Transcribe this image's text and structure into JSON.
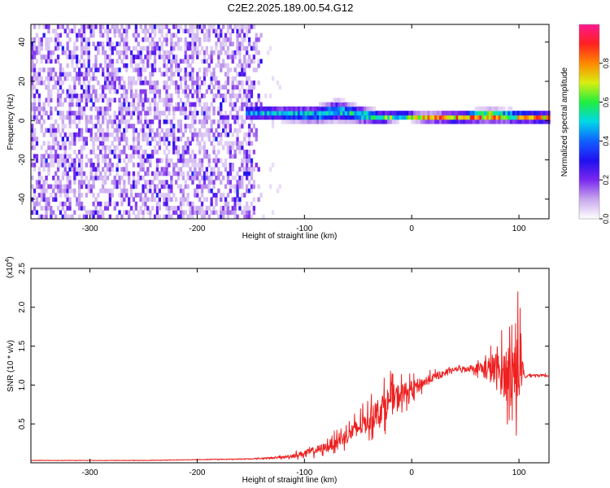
{
  "figure_title": "C2E2.2025.189.00.54.G12",
  "chart_data": [
    {
      "type": "heatmap",
      "title": "",
      "xlabel": "Height of straight line (km)",
      "ylabel": "Frequency (Hz)",
      "xlim": [
        -355,
        128
      ],
      "ylim": [
        -50,
        49
      ],
      "xticks": [
        -300,
        -200,
        -100,
        0,
        100
      ],
      "yticks": [
        -40,
        -20,
        0,
        20,
        40
      ],
      "colorbar": {
        "label": "Normalized spectral amplitude",
        "range": [
          0,
          1
        ],
        "ticks": [
          "0.0",
          "0.2",
          "0.4",
          "0.6",
          "0.8"
        ],
        "colormap": [
          "#ffffff",
          "#c8a8ee",
          "#7a28ee",
          "#2010f0",
          "#1060ff",
          "#00d8e8",
          "#20ee40",
          "#d8ee10",
          "#ff8800",
          "#ff2020",
          "#ff1890"
        ]
      },
      "noise_region_x": [
        -355,
        -140
      ],
      "signal_band": [
        {
          "x": -155,
          "center_hz": 3.0,
          "half_width_hz": 3.5,
          "peak_amp": 0.45
        },
        {
          "x": -120,
          "center_hz": 2.5,
          "half_width_hz": 3.5,
          "peak_amp": 0.5
        },
        {
          "x": -90,
          "center_hz": 2.0,
          "half_width_hz": 4.0,
          "peak_amp": 0.5
        },
        {
          "x": -70,
          "center_hz": 4.0,
          "half_width_hz": 5.0,
          "peak_amp": 0.5
        },
        {
          "x": -50,
          "center_hz": 2.0,
          "half_width_hz": 4.0,
          "peak_amp": 0.55
        },
        {
          "x": -30,
          "center_hz": 0.5,
          "half_width_hz": 3.0,
          "peak_amp": 0.6
        },
        {
          "x": -10,
          "center_hz": 1.5,
          "half_width_hz": 2.0,
          "peak_amp": 0.7
        },
        {
          "x": 10,
          "center_hz": 0.5,
          "half_width_hz": 2.0,
          "peak_amp": 0.85
        },
        {
          "x": 40,
          "center_hz": 0.5,
          "half_width_hz": 2.5,
          "peak_amp": 0.8
        },
        {
          "x": 70,
          "center_hz": 1.5,
          "half_width_hz": 3.0,
          "peak_amp": 0.9
        },
        {
          "x": 95,
          "center_hz": 1.0,
          "half_width_hz": 3.0,
          "peak_amp": 0.7
        },
        {
          "x": 128,
          "center_hz": 0.5,
          "half_width_hz": 2.5,
          "peak_amp": 0.85
        }
      ]
    },
    {
      "type": "line",
      "title": "",
      "xlabel": "Height of straight line (km)",
      "ylabel": "SNR (10 * v/v)",
      "y_multiplier_prefix": "(x10",
      "y_multiplier_exponent": "4",
      "y_multiplier_suffix": ")",
      "xlim": [
        -355,
        128
      ],
      "ylim": [
        0,
        2.5
      ],
      "xticks": [
        -300,
        -200,
        -100,
        0,
        100
      ],
      "yticks": [
        "0.5",
        "1.0",
        "1.5",
        "2.0",
        "2.5"
      ],
      "series": [
        {
          "color": "#ee2020",
          "x": [
            -355,
            -300,
            -250,
            -200,
            -150,
            -120,
            -100,
            -80,
            -60,
            -40,
            -20,
            0,
            20,
            40,
            60,
            75,
            85,
            95,
            100,
            105,
            110,
            128
          ],
          "y": [
            0.03,
            0.03,
            0.03,
            0.04,
            0.05,
            0.07,
            0.12,
            0.2,
            0.35,
            0.55,
            0.8,
            0.95,
            1.1,
            1.2,
            1.22,
            1.2,
            1.15,
            1.2,
            1.3,
            1.1,
            1.13,
            1.12
          ],
          "noise_amp": [
            0.005,
            0.005,
            0.005,
            0.006,
            0.01,
            0.03,
            0.08,
            0.12,
            0.2,
            0.3,
            0.4,
            0.2,
            0.1,
            0.05,
            0.1,
            0.4,
            0.6,
            0.9,
            1.1,
            0.05,
            0.03,
            0.03
          ]
        }
      ]
    }
  ]
}
